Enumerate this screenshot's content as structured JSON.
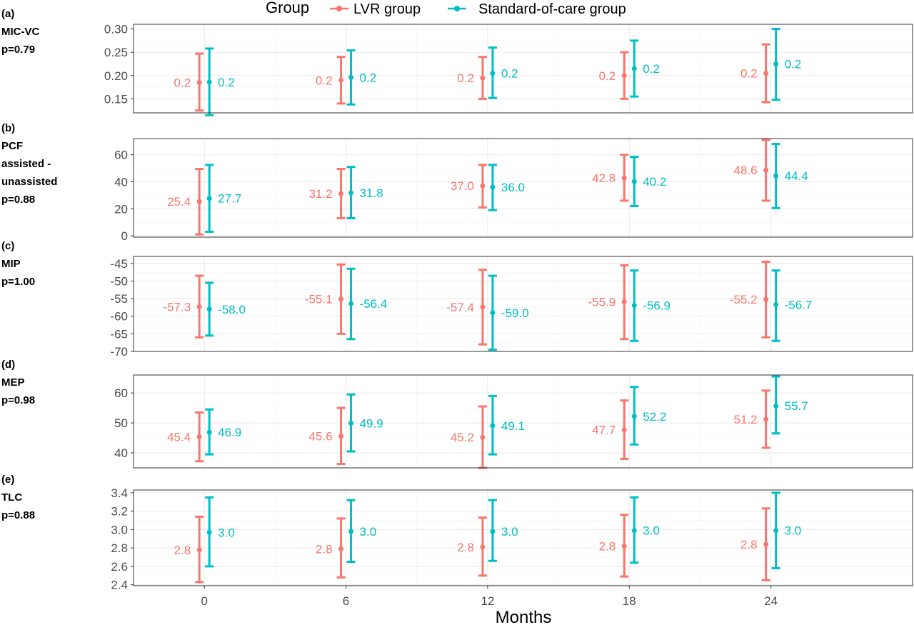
{
  "legend": {
    "title": "Group",
    "items": [
      {
        "label": "LVR group",
        "color": "#F8766D"
      },
      {
        "label": "Standard-of-care group",
        "color": "#00BFC4"
      }
    ]
  },
  "x_axis": {
    "title": "Months",
    "ticks": [
      "0",
      "6",
      "12",
      "18",
      "24"
    ]
  },
  "chart_data": {
    "type": "errorbar",
    "x": [
      0,
      6,
      12,
      18,
      24
    ],
    "xlabel": "Months",
    "xlim": [
      -3,
      30
    ],
    "series_names": [
      "LVR group",
      "Standard-of-care group"
    ],
    "panels": [
      {
        "label_lines": [
          "(a)",
          "MIC-VC",
          "p=0.79"
        ],
        "ylim": [
          0.12,
          0.31
        ],
        "yticks": [
          0.15,
          0.2,
          0.25,
          0.3
        ],
        "ytick_labels": [
          "0.15",
          "0.20",
          "0.25",
          "0.30"
        ],
        "series": [
          {
            "name": "LVR group",
            "mean": [
              0.185,
              0.19,
              0.195,
              0.2,
              0.205
            ],
            "lower": [
              0.125,
              0.14,
              0.15,
              0.15,
              0.143
            ],
            "upper": [
              0.247,
              0.24,
              0.24,
              0.25,
              0.267
            ],
            "labels": [
              "0.2",
              "0.2",
              "0.2",
              "0.2",
              "0.2"
            ]
          },
          {
            "name": "Standard-of-care group",
            "mean": [
              0.186,
              0.196,
              0.205,
              0.215,
              0.225
            ],
            "lower": [
              0.115,
              0.138,
              0.152,
              0.155,
              0.148
            ],
            "upper": [
              0.258,
              0.254,
              0.26,
              0.275,
              0.3
            ],
            "labels": [
              "0.2",
              "0.2",
              "0.2",
              "0.2",
              "0.2"
            ]
          }
        ]
      },
      {
        "label_lines": [
          "(b)",
          "PCF",
          "assisted -",
          "unassisted",
          "p=0.88"
        ],
        "ylim": [
          -1,
          72
        ],
        "yticks": [
          0,
          20,
          40,
          60
        ],
        "ytick_labels": [
          "0",
          "20",
          "40",
          "60"
        ],
        "series": [
          {
            "name": "LVR group",
            "mean": [
              25.4,
              31.2,
              37.0,
              42.8,
              48.6
            ],
            "lower": [
              1,
              13,
              21,
              26,
              26
            ],
            "upper": [
              49.5,
              49.5,
              52.5,
              60,
              71
            ],
            "labels": [
              "25.4",
              "31.2",
              "37.0",
              "42.8",
              "48.6"
            ]
          },
          {
            "name": "Standard-of-care group",
            "mean": [
              27.7,
              31.8,
              36.0,
              40.2,
              44.4
            ],
            "lower": [
              3,
              13,
              19,
              22,
              20.5
            ],
            "upper": [
              52.5,
              51,
              52.5,
              58.5,
              68
            ],
            "labels": [
              "27.7",
              "31.8",
              "36.0",
              "40.2",
              "44.4"
            ]
          }
        ]
      },
      {
        "label_lines": [
          "(c)",
          "MIP",
          "p=1.00"
        ],
        "ylim": [
          -70,
          -43
        ],
        "yticks": [
          -70,
          -65,
          -60,
          -55,
          -50,
          -45
        ],
        "ytick_labels": [
          "-70",
          "-65",
          "-60",
          "-55",
          "-50",
          "-45"
        ],
        "series": [
          {
            "name": "LVR group",
            "mean": [
              -57.3,
              -55.1,
              -57.4,
              -55.9,
              -55.2
            ],
            "lower": [
              -66,
              -65,
              -68,
              -66.5,
              -66
            ],
            "upper": [
              -48.5,
              -45.3,
              -46.8,
              -45.5,
              -44.5
            ],
            "labels": [
              "-57.3",
              "-55.1",
              "-57.4",
              "-55.9",
              "-55.2"
            ]
          },
          {
            "name": "Standard-of-care group",
            "mean": [
              -58.0,
              -56.4,
              -59.0,
              -56.9,
              -56.7
            ],
            "lower": [
              -65.5,
              -66.5,
              -69.5,
              -67,
              -67
            ],
            "upper": [
              -50.5,
              -46.5,
              -48.5,
              -47,
              -47
            ],
            "labels": [
              "-58.0",
              "-56.4",
              "-59.0",
              "-56.9",
              "-56.7"
            ]
          }
        ]
      },
      {
        "label_lines": [
          "(d)",
          "MEP",
          "p=0.98"
        ],
        "ylim": [
          35,
          66
        ],
        "yticks": [
          40,
          50,
          60
        ],
        "ytick_labels": [
          "40",
          "50",
          "60"
        ],
        "series": [
          {
            "name": "LVR group",
            "mean": [
              45.4,
              45.6,
              45.2,
              47.7,
              51.2
            ],
            "lower": [
              37.2,
              36.3,
              35,
              38,
              41.7
            ],
            "upper": [
              53.5,
              55,
              55.5,
              57.5,
              60.8
            ],
            "labels": [
              "45.4",
              "45.6",
              "45.2",
              "47.7",
              "51.2"
            ]
          },
          {
            "name": "Standard-of-care group",
            "mean": [
              46.9,
              49.9,
              49.1,
              52.2,
              55.7
            ],
            "lower": [
              39.5,
              40.5,
              39.5,
              42.8,
              46.5
            ],
            "upper": [
              54.5,
              59.5,
              59,
              62,
              65.5
            ],
            "labels": [
              "46.9",
              "49.9",
              "49.1",
              "52.2",
              "55.7"
            ]
          }
        ]
      },
      {
        "label_lines": [
          "(e)",
          "TLC",
          "p=0.88"
        ],
        "ylim": [
          2.39,
          3.43
        ],
        "yticks": [
          2.4,
          2.6,
          2.8,
          3.0,
          3.2,
          3.4
        ],
        "ytick_labels": [
          "2.4",
          "2.6",
          "2.8",
          "3.0",
          "3.2",
          "3.4"
        ],
        "series": [
          {
            "name": "LVR group",
            "mean": [
              2.78,
              2.79,
              2.81,
              2.82,
              2.84
            ],
            "lower": [
              2.43,
              2.48,
              2.5,
              2.49,
              2.45
            ],
            "upper": [
              3.14,
              3.12,
              3.13,
              3.16,
              3.23
            ],
            "labels": [
              "2.8",
              "2.8",
              "2.8",
              "2.8",
              "2.8"
            ]
          },
          {
            "name": "Standard-of-care group",
            "mean": [
              2.97,
              2.98,
              2.98,
              2.99,
              2.99
            ],
            "lower": [
              2.6,
              2.65,
              2.66,
              2.64,
              2.58
            ],
            "upper": [
              3.35,
              3.32,
              3.32,
              3.35,
              3.4
            ],
            "labels": [
              "3.0",
              "3.0",
              "3.0",
              "3.0",
              "3.0"
            ]
          }
        ]
      }
    ]
  }
}
